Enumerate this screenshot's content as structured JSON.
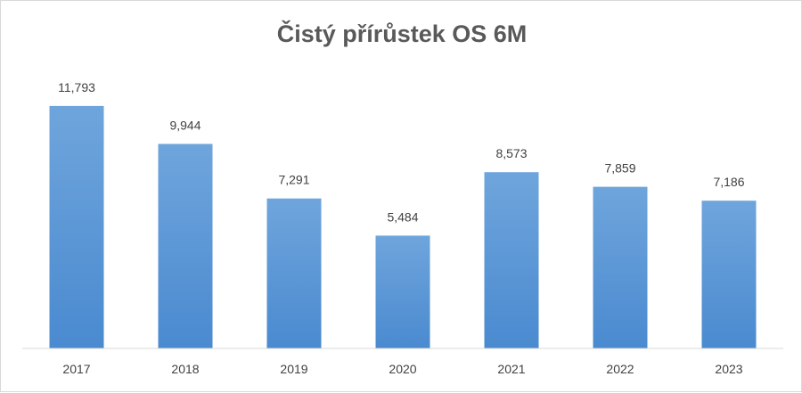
{
  "chart_data": {
    "type": "bar",
    "title": "Čistý přírůstek OS 6M",
    "categories": [
      "2017",
      "2018",
      "2019",
      "2020",
      "2021",
      "2022",
      "2023"
    ],
    "values": [
      11793,
      9944,
      7291,
      5484,
      8573,
      7859,
      7186
    ],
    "value_labels": [
      "11,793",
      "9,944",
      "7,291",
      "5,484",
      "8,573",
      "7,859",
      "7,186"
    ],
    "xlabel": "",
    "ylabel": "",
    "ylim": [
      0,
      13000
    ],
    "grid": false,
    "legend": "none",
    "bar_color_top": "#6fa5dc",
    "bar_color_bottom": "#4a8ad0",
    "axis_color": "#d9d9d9"
  }
}
